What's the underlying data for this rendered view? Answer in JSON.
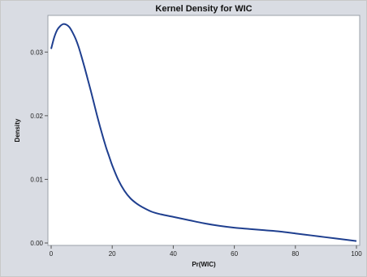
{
  "chart_data": {
    "type": "line",
    "title": "Kernel Density for WIC",
    "xlabel": "Pr(WIC)",
    "ylabel": "Density",
    "xlim": [
      0,
      100
    ],
    "ylim": [
      0,
      0.035
    ],
    "x_ticks": [
      0,
      20,
      40,
      60,
      80,
      100
    ],
    "y_ticks": [
      0.0,
      0.01,
      0.02,
      0.03
    ],
    "y_tick_labels": [
      "0.00",
      "0.01",
      "0.02",
      "0.03"
    ],
    "grid": false,
    "series_color": "#1f3f8f",
    "series": [
      {
        "x": [
          0,
          1,
          2,
          3,
          4,
          5,
          6,
          7,
          8,
          9,
          10,
          11,
          12,
          13,
          14,
          15,
          16,
          17,
          18,
          19,
          20,
          22,
          24,
          26,
          28,
          30,
          33,
          36,
          40,
          45,
          50,
          55,
          60,
          65,
          70,
          75,
          80,
          85,
          90,
          95,
          100
        ],
        "y": [
          0.0305,
          0.0323,
          0.0335,
          0.0341,
          0.0344,
          0.0343,
          0.0339,
          0.0331,
          0.0321,
          0.0308,
          0.0292,
          0.0275,
          0.0257,
          0.0239,
          0.022,
          0.0201,
          0.0183,
          0.0166,
          0.015,
          0.0136,
          0.0122,
          0.0099,
          0.0082,
          0.007,
          0.0062,
          0.0056,
          0.0049,
          0.0045,
          0.0041,
          0.0036,
          0.0031,
          0.0027,
          0.0024,
          0.0022,
          0.002,
          0.0018,
          0.0015,
          0.0012,
          0.0009,
          0.0006,
          0.0003
        ]
      }
    ]
  }
}
